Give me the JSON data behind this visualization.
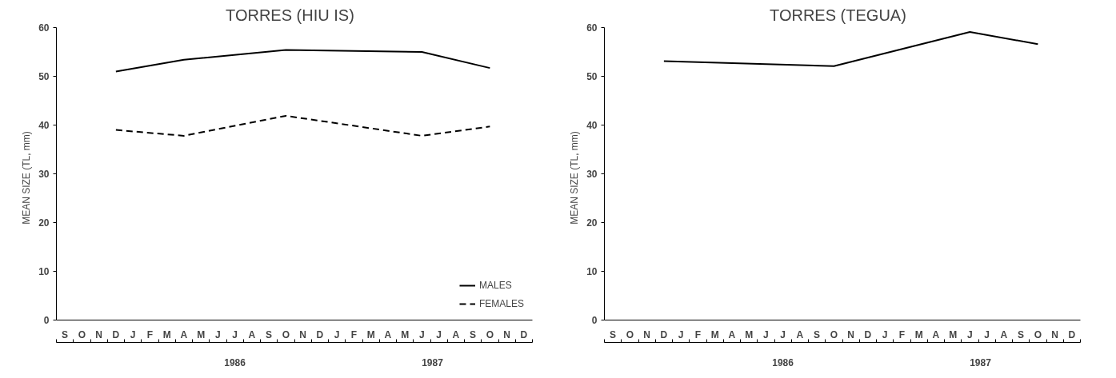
{
  "chart_data": [
    {
      "type": "line",
      "title": "TORRES   (HIU IS)",
      "ylabel": "MEAN SIZE    (TL, mm)",
      "categories": [
        "S",
        "O",
        "N",
        "D",
        "J",
        "F",
        "M",
        "A",
        "M",
        "J",
        "J",
        "A",
        "S",
        "O",
        "N",
        "D",
        "J",
        "F",
        "M",
        "A",
        "M",
        "J",
        "J",
        "A",
        "S",
        "O",
        "N",
        "D"
      ],
      "ylim": [
        0,
        60
      ],
      "yticks": [
        0,
        10,
        20,
        30,
        40,
        50,
        60
      ],
      "grid": false,
      "legend": "bottom right",
      "marker": "none",
      "annotations": [
        "1986",
        "1987"
      ],
      "series": [
        {
          "name": "MALES",
          "color": "#000000",
          "line_style": "solid",
          "values": [
            null,
            null,
            null,
            51.0,
            null,
            null,
            null,
            53.4,
            null,
            null,
            null,
            null,
            null,
            55.4,
            null,
            null,
            null,
            null,
            null,
            null,
            null,
            55.0,
            null,
            null,
            null,
            51.7,
            null,
            null
          ]
        },
        {
          "name": "FEMALES",
          "color": "#000000",
          "line_style": "dashed",
          "values": [
            null,
            null,
            null,
            39.0,
            null,
            null,
            null,
            37.8,
            null,
            null,
            null,
            null,
            null,
            41.9,
            null,
            null,
            null,
            null,
            null,
            null,
            null,
            37.8,
            null,
            null,
            null,
            39.7,
            null,
            null
          ]
        }
      ]
    },
    {
      "type": "line",
      "title": "TORRES   (TEGUA)",
      "ylabel": "MEAN SIZE    (TL, mm)",
      "categories": [
        "S",
        "O",
        "N",
        "D",
        "J",
        "F",
        "M",
        "A",
        "M",
        "J",
        "J",
        "A",
        "S",
        "O",
        "N",
        "D",
        "J",
        "F",
        "M",
        "A",
        "M",
        "J",
        "J",
        "A",
        "S",
        "O",
        "N",
        "D"
      ],
      "ylim": [
        0,
        60
      ],
      "yticks": [
        0,
        10,
        20,
        30,
        40,
        50,
        60
      ],
      "grid": false,
      "marker": "none",
      "annotations": [
        "1986",
        "1987"
      ],
      "series": [
        {
          "color": "#000000",
          "line_style": "solid",
          "values": [
            null,
            null,
            null,
            53.1,
            null,
            null,
            null,
            null,
            null,
            null,
            null,
            null,
            null,
            52.1,
            null,
            null,
            null,
            null,
            null,
            null,
            null,
            59.1,
            null,
            null,
            null,
            56.6,
            null,
            null
          ]
        }
      ]
    }
  ]
}
